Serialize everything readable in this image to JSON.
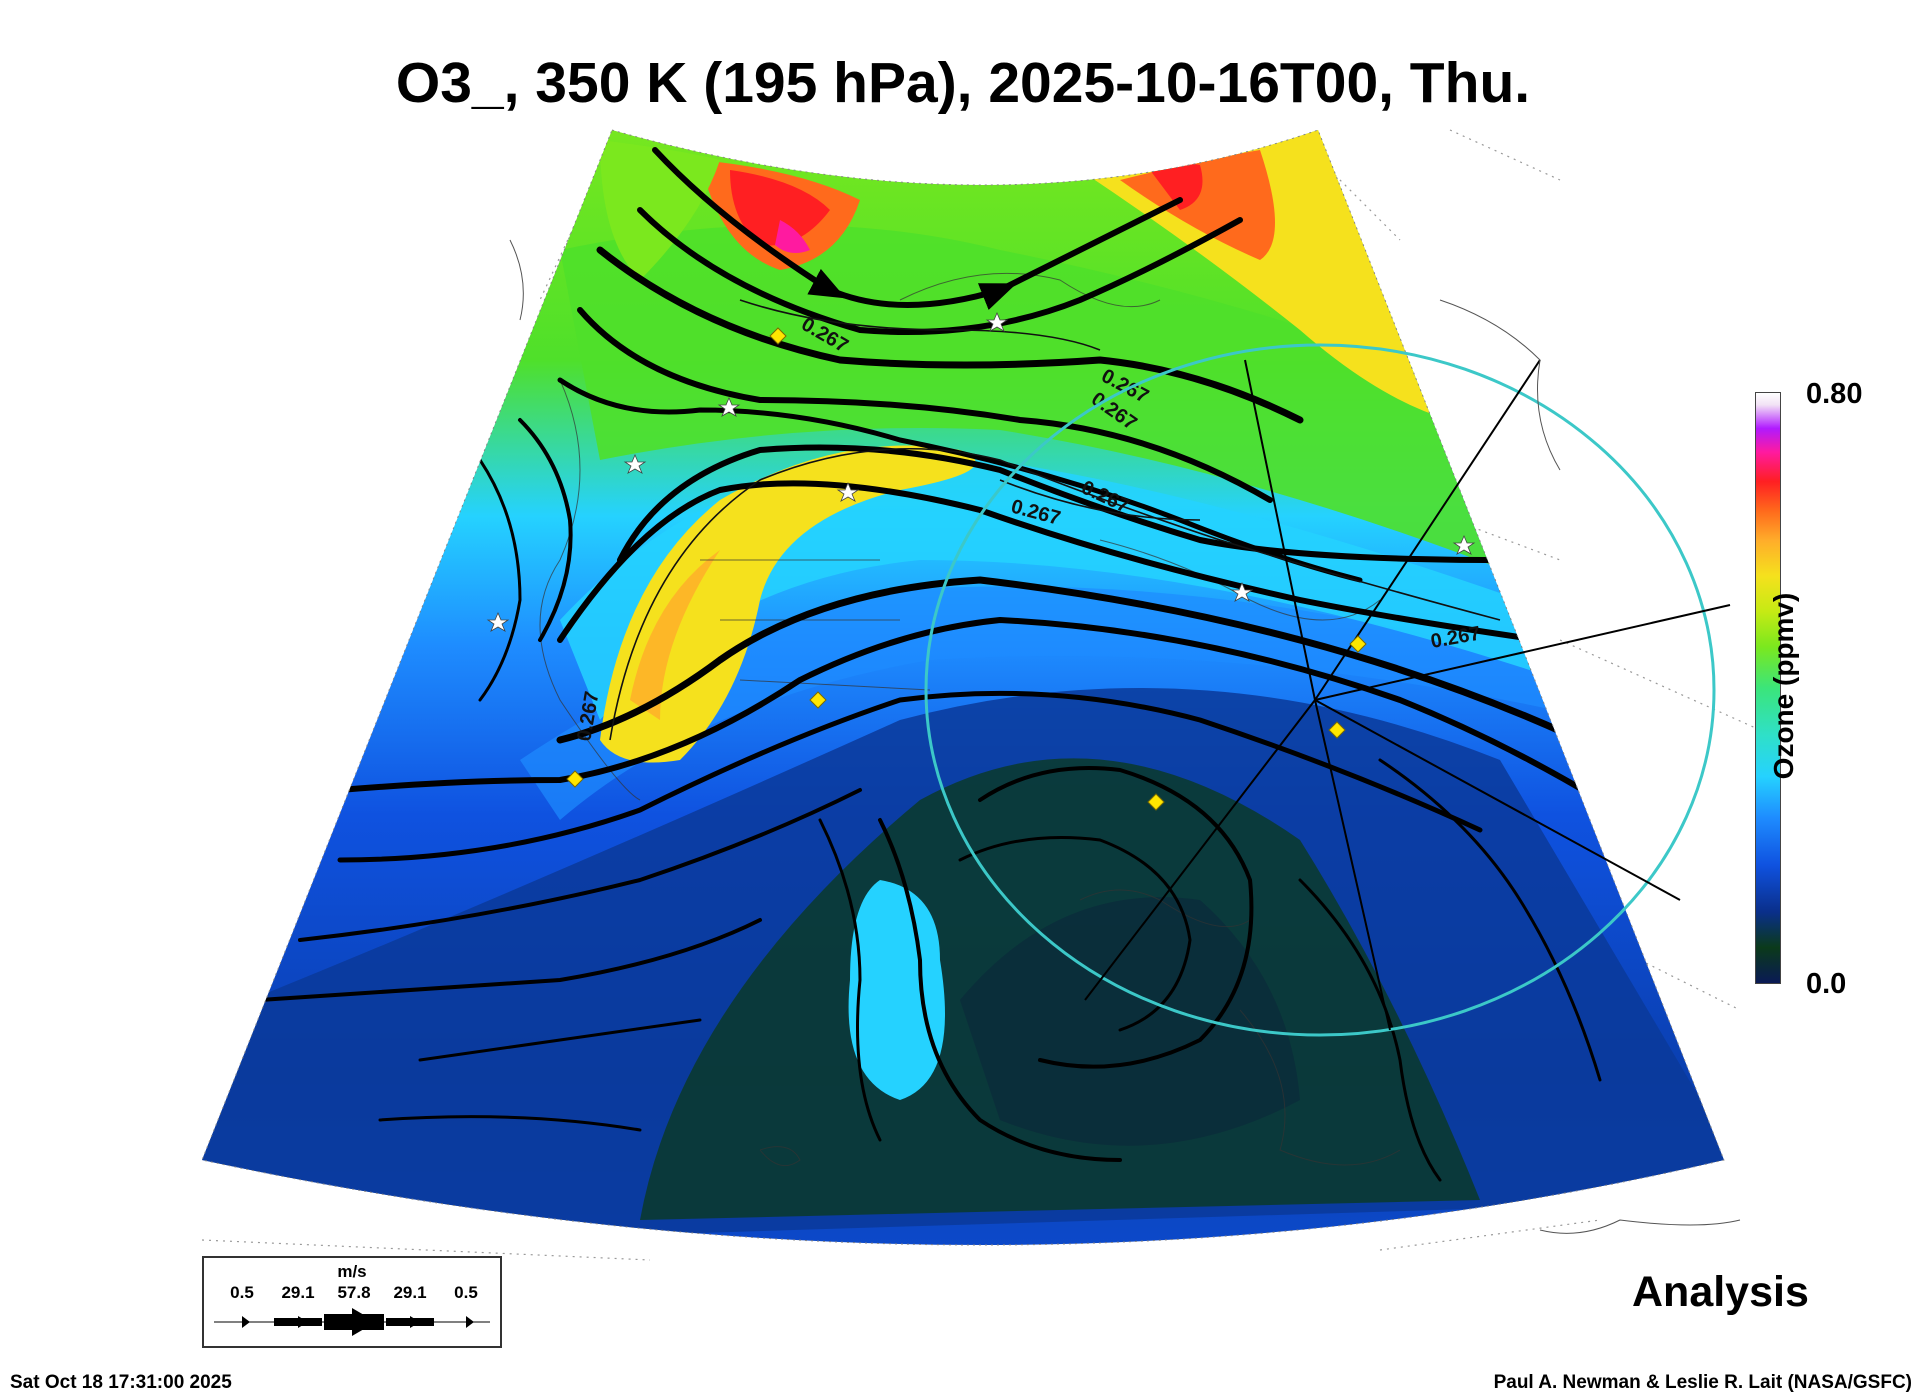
{
  "title": "O3_, 350 K (195 hPa), 2025-10-16T00, Thu.",
  "colorbar": {
    "max_label": "0.80",
    "min_label": "0.0",
    "title": "Ozone (ppmv)"
  },
  "contour_labels": [
    "0.267",
    "0.267",
    "0.267",
    "0.267",
    "0.267",
    "0.267",
    "0.267"
  ],
  "vector_legend": {
    "unit": "m/s",
    "speeds": [
      "0.5",
      "29.1",
      "57.8",
      "29.1",
      "0.5"
    ]
  },
  "analysis_label": "Analysis",
  "timestamp": "Sat Oct 18 17:31:00 2025",
  "credit": "Paul A. Newman & Leslie R. Lait (NASA/GSFC)",
  "colors": {
    "high_ozone": "#ff1f22",
    "mid_ozone": "#f5e11d",
    "green": "#4fe02a",
    "cyan": "#25d2ff",
    "low_ozone": "#0f52e0",
    "lowest_ozone": "#0b3a1a",
    "range_ring": "#3cc8c8",
    "station_marker": "#ffe600"
  },
  "icons": [
    "white-star-station-icon",
    "yellow-diamond-site-icon"
  ]
}
